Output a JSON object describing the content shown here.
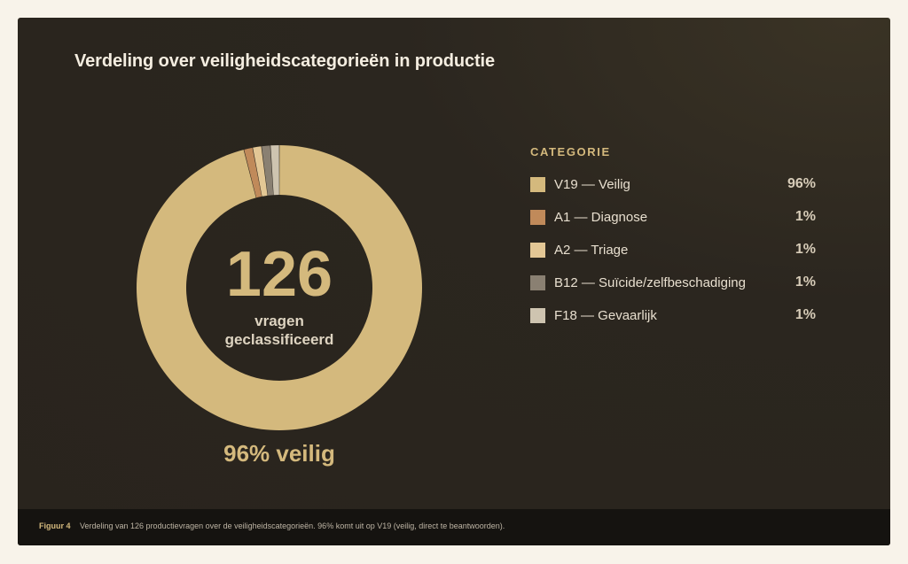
{
  "title": "Verdeling over veiligheidscategorieën in productie",
  "center": {
    "number": "126",
    "line1": "vragen",
    "line2": "geclassificeerd"
  },
  "below_label": "96% veilig",
  "legend_title": "CATEGORIE",
  "chart_data": {
    "type": "pie",
    "title": "Verdeling over veiligheidscategorieën in productie",
    "total": 126,
    "slices": [
      {
        "label": "V19 — Veilig",
        "value": 96,
        "pct_label": "96%",
        "color": "#d4b97d"
      },
      {
        "label": "A1 — Diagnose",
        "value": 1,
        "pct_label": "1%",
        "color": "#c08a5a"
      },
      {
        "label": "A2 — Triage",
        "value": 1,
        "pct_label": "1%",
        "color": "#e3c795"
      },
      {
        "label": "B12 — Suïcide/zelfbeschadiging",
        "value": 1,
        "pct_label": "1%",
        "color": "#8a8072"
      },
      {
        "label": "F18 — Gevaarlijk",
        "value": 1,
        "pct_label": "1%",
        "color": "#cec4b0"
      }
    ],
    "legend_position": "right"
  },
  "caption": {
    "label": "Figuur 4",
    "text": "Verdeling van 126 productievragen over de veiligheidscategorieën. 96% komt uit op V19 (veilig, direct te beantwoorden)."
  }
}
